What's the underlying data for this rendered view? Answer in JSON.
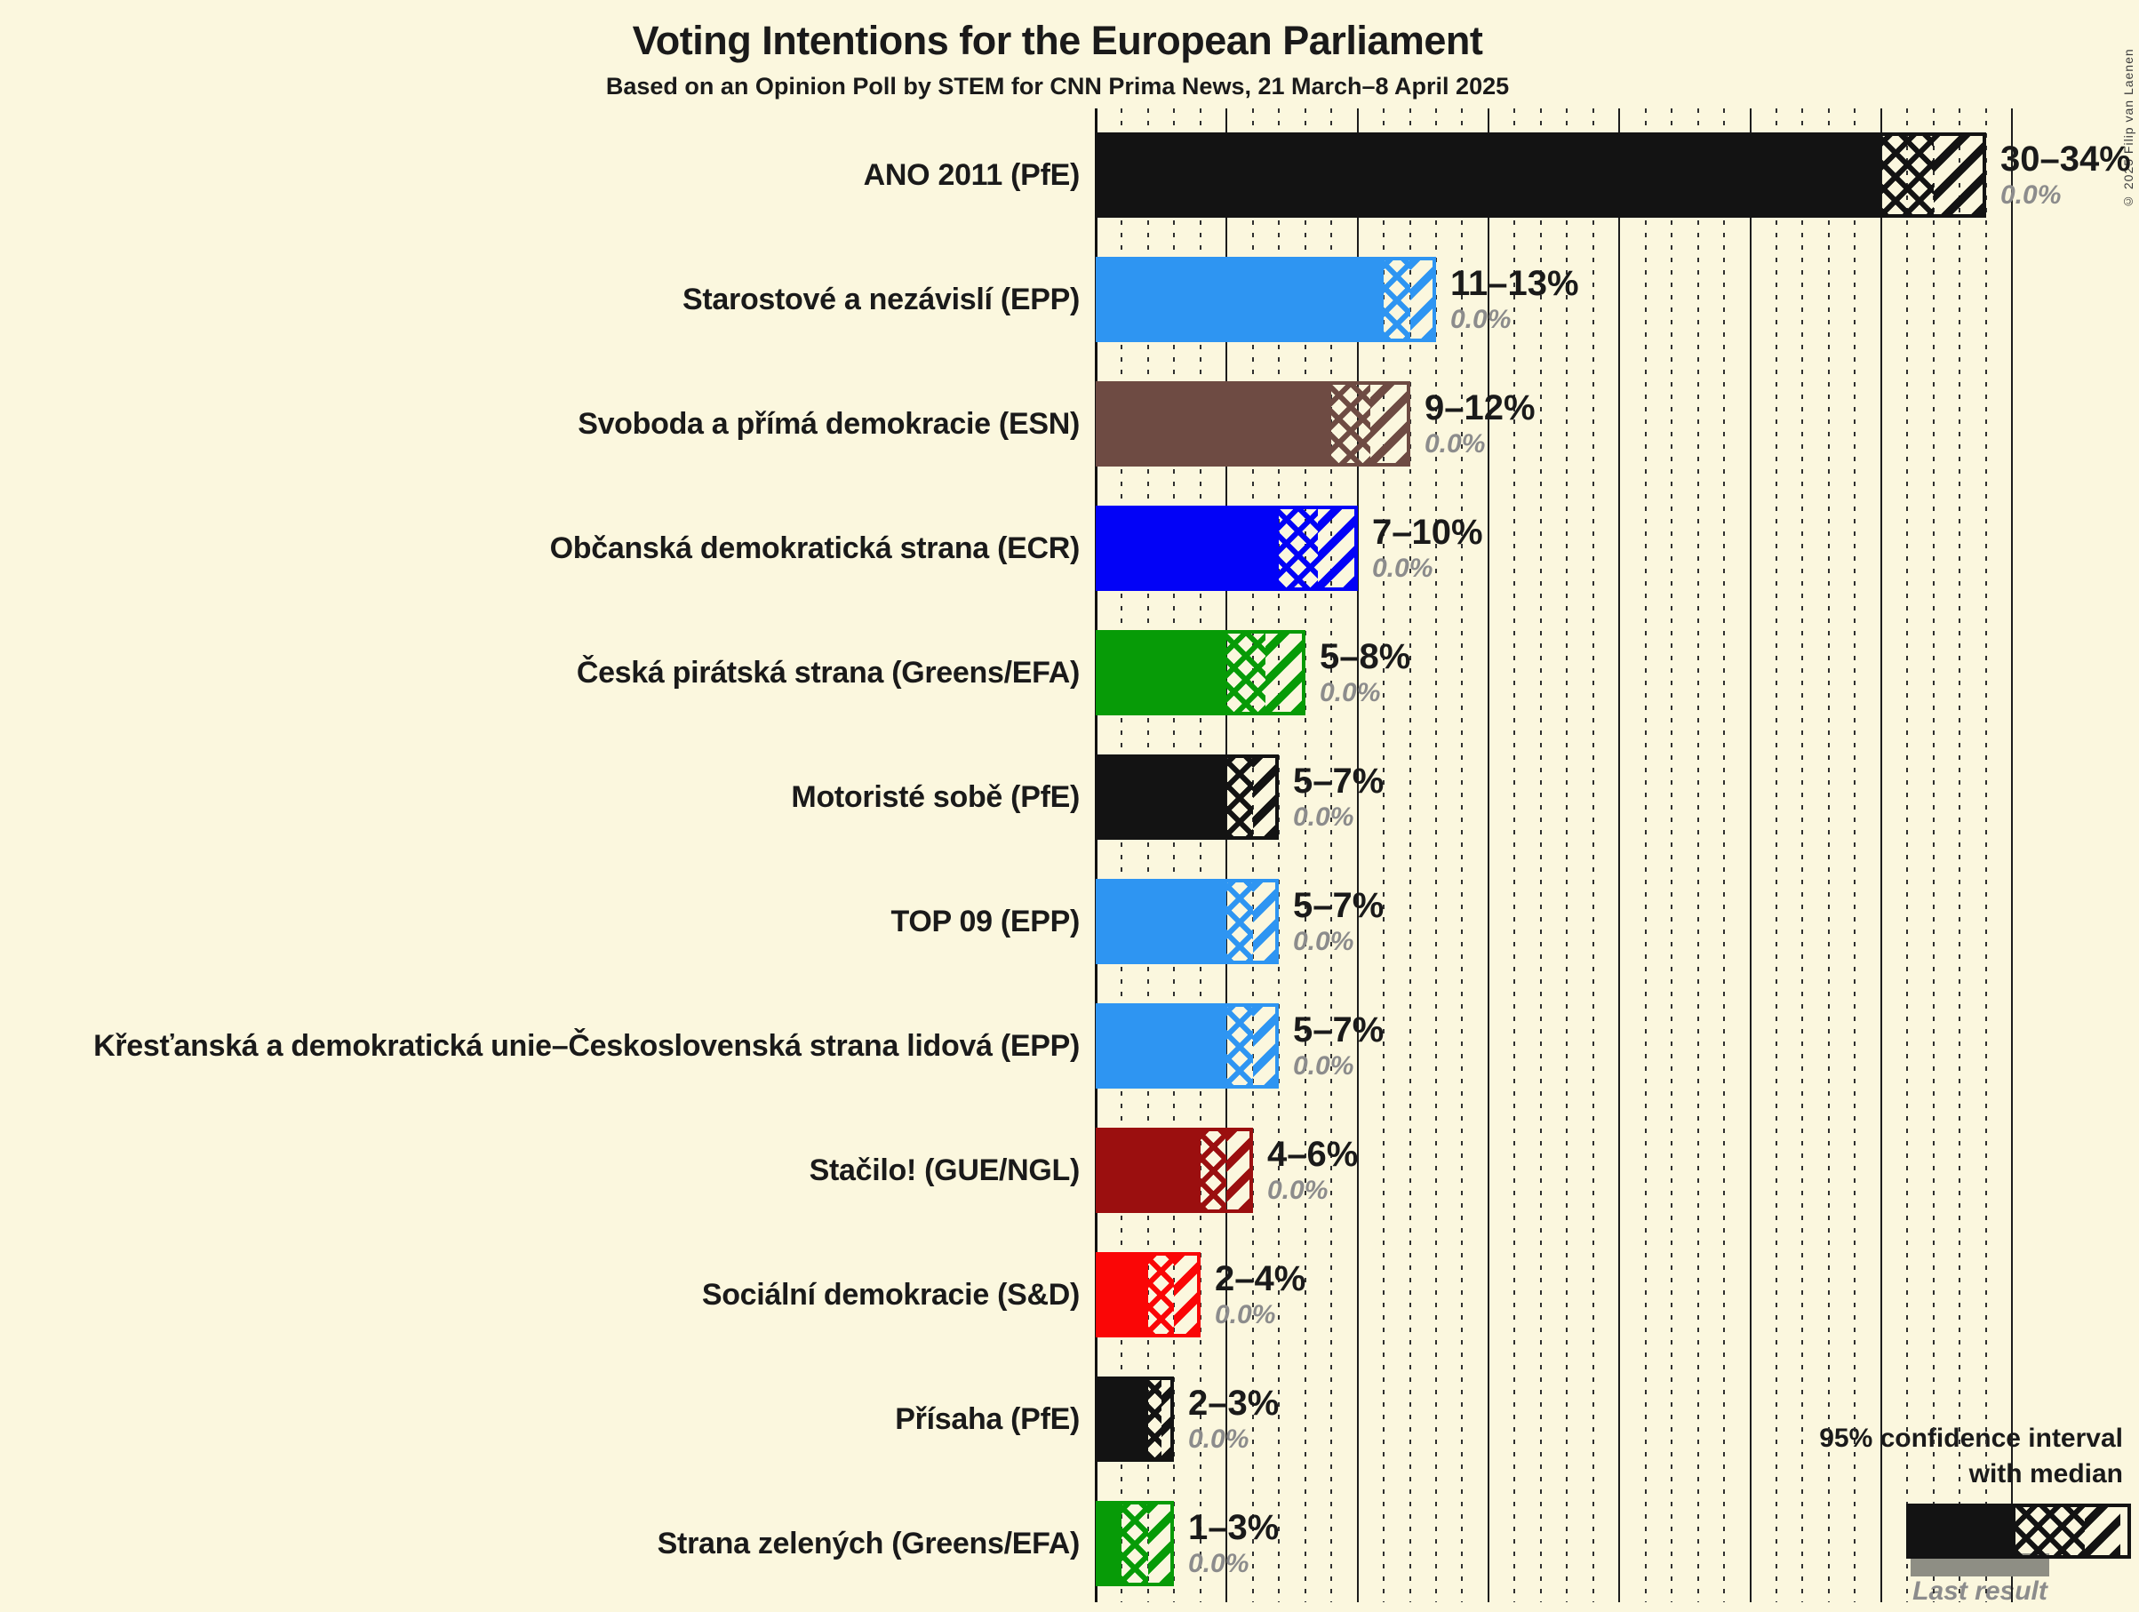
{
  "title": "Voting Intentions for the European Parliament",
  "subtitle": "Based on an Opinion Poll by STEM for CNN Prima News, 21 March–8 April 2025",
  "copyright": "© 2025 Filip van Laenen",
  "legend": {
    "line1": "95% confidence interval",
    "line2": "with median",
    "last_result": "Last result"
  },
  "colors": {
    "background": "#FBF7DE",
    "grid_major": "#1C1C1C",
    "grid_minor": "#2F2F2F",
    "text": "#1A1A1A",
    "muted_text": "#8C8C8C",
    "last_result_bar": "#8E8E84"
  },
  "chart_data": {
    "type": "bar",
    "orientation": "horizontal",
    "title": "Voting Intentions for the European Parliament",
    "subtitle": "Based on an Opinion Poll by STEM for CNN Prima News, 21 March–8 April 2025",
    "x_axis": {
      "min": 0,
      "max": 35,
      "unit": "%",
      "major_gridline_step": 5,
      "minor_gridline_step": 1,
      "tick_labels_visible": false
    },
    "bar_encoding": {
      "solid": "0 to 95% CI lower bound",
      "crosshatch": "CI lower bound to median",
      "diagonal_hatch": "median to CI upper bound",
      "gray_underbar": "last result"
    },
    "legend_position": "bottom-right",
    "parties": [
      {
        "label": "ANO 2011 (PfE)",
        "color": "#131313",
        "ci_low": 30,
        "median": 32,
        "ci_high": 34,
        "range_label": "30–34%",
        "last_result_label": "0.0%",
        "last_result_value": 0.0
      },
      {
        "label": "Starostové a nezávislí (EPP)",
        "color": "#2E95F2",
        "ci_low": 11,
        "median": 12,
        "ci_high": 13,
        "range_label": "11–13%",
        "last_result_label": "0.0%",
        "last_result_value": 0.0
      },
      {
        "label": "Svoboda a přímá demokracie (ESN)",
        "color": "#6E4B43",
        "ci_low": 9,
        "median": 10.5,
        "ci_high": 12,
        "range_label": "9–12%",
        "last_result_label": "0.0%",
        "last_result_value": 0.0
      },
      {
        "label": "Občanská demokratická strana (ECR)",
        "color": "#0202F7",
        "ci_low": 7,
        "median": 8.5,
        "ci_high": 10,
        "range_label": "7–10%",
        "last_result_label": "0.0%",
        "last_result_value": 0.0
      },
      {
        "label": "Česká pirátská strana (Greens/EFA)",
        "color": "#079B07",
        "ci_low": 5,
        "median": 6.5,
        "ci_high": 8,
        "range_label": "5–8%",
        "last_result_label": "0.0%",
        "last_result_value": 0.0
      },
      {
        "label": "Motoristé sobě (PfE)",
        "color": "#131313",
        "ci_low": 5,
        "median": 6,
        "ci_high": 7,
        "range_label": "5–7%",
        "last_result_label": "0.0%",
        "last_result_value": 0.0
      },
      {
        "label": "TOP 09 (EPP)",
        "color": "#2E95F2",
        "ci_low": 5,
        "median": 6,
        "ci_high": 7,
        "range_label": "5–7%",
        "last_result_label": "0.0%",
        "last_result_value": 0.0
      },
      {
        "label": "Křesťanská a demokratická unie–Československá strana lidová (EPP)",
        "color": "#2E95F2",
        "ci_low": 5,
        "median": 6,
        "ci_high": 7,
        "range_label": "5–7%",
        "last_result_label": "0.0%",
        "last_result_value": 0.0
      },
      {
        "label": "Stačilo! (GUE/NGL)",
        "color": "#9B0F0F",
        "ci_low": 4,
        "median": 5,
        "ci_high": 6,
        "range_label": "4–6%",
        "last_result_label": "0.0%",
        "last_result_value": 0.0
      },
      {
        "label": "Sociální demokracie (S&D)",
        "color": "#FA0606",
        "ci_low": 2,
        "median": 3,
        "ci_high": 4,
        "range_label": "2–4%",
        "last_result_label": "0.0%",
        "last_result_value": 0.0
      },
      {
        "label": "Přísaha (PfE)",
        "color": "#131313",
        "ci_low": 2,
        "median": 2.5,
        "ci_high": 3,
        "range_label": "2–3%",
        "last_result_label": "0.0%",
        "last_result_value": 0.0
      },
      {
        "label": "Strana zelených (Greens/EFA)",
        "color": "#079B07",
        "ci_low": 1,
        "median": 2,
        "ci_high": 3,
        "range_label": "1–3%",
        "last_result_label": "0.0%",
        "last_result_value": 0.0
      }
    ],
    "legend_sample": {
      "solid_fraction": 0.5,
      "cross_fraction": 0.32,
      "diag_fraction": 0.18
    }
  }
}
